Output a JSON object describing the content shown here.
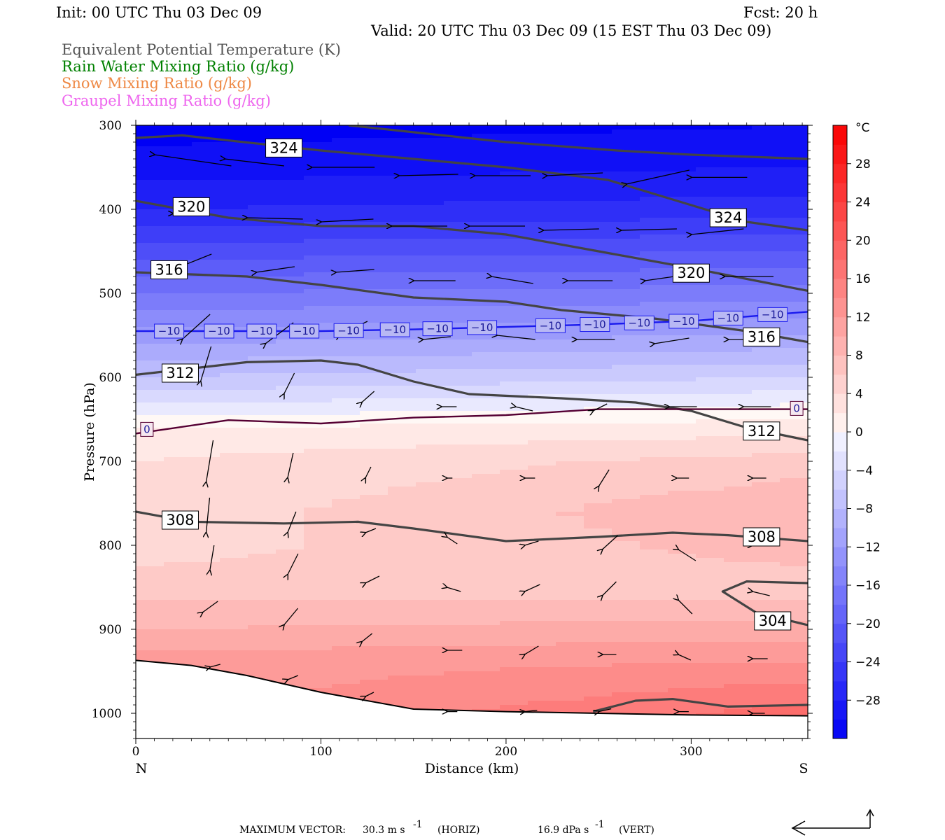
{
  "header": {
    "init": "Init: 00 UTC Thu 03 Dec 09",
    "fcst": "Fcst:   20 h",
    "valid": "Valid: 20 UTC Thu 03 Dec 09 (15 EST Thu 03 Dec 09)"
  },
  "legend": [
    {
      "text": "Equivalent Potential Temperature (K)",
      "color": "#555555"
    },
    {
      "text": "Rain Water Mixing Ratio (g/kg)",
      "color": "#008000"
    },
    {
      "text": "Snow Mixing Ratio (g/kg)",
      "color": "#ee8844"
    },
    {
      "text": "Graupel Mixing Ratio (g/kg)",
      "color": "#ee66ee"
    }
  ],
  "chart_data": {
    "type": "cross-section",
    "xlabel": "Distance (km)",
    "ylabel": "Pressure (hPa)",
    "x_range": [
      0,
      363
    ],
    "y_range_hPa": [
      300,
      1030
    ],
    "x_ticks": [
      0,
      100,
      200,
      300
    ],
    "y_ticks": [
      300,
      400,
      500,
      600,
      700,
      800,
      900,
      1000
    ],
    "left_end_label": "N",
    "right_end_label": "S",
    "colorbar": {
      "unit": "°C",
      "range": [
        -32,
        32
      ],
      "ticks": [
        28,
        24,
        20,
        16,
        12,
        8,
        4,
        0,
        -4,
        -8,
        -12,
        -16,
        -20,
        -24,
        -28
      ],
      "tick_labels": [
        "28",
        "24",
        "20",
        "16",
        "12",
        "8",
        "4",
        "0",
        "−4",
        "−8",
        "−12",
        "−16",
        "−20",
        "−24",
        "−28"
      ]
    },
    "temperature_field": {
      "description_free": true,
      "profile_left": [
        [
          300,
          -32
        ],
        [
          350,
          -30
        ],
        [
          400,
          -27
        ],
        [
          450,
          -22
        ],
        [
          500,
          -17
        ],
        [
          550,
          -12
        ],
        [
          600,
          -7
        ],
        [
          640,
          -2
        ],
        [
          660,
          1
        ],
        [
          700,
          3
        ],
        [
          800,
          4
        ],
        [
          850,
          6
        ],
        [
          900,
          9
        ],
        [
          940,
          12
        ]
      ],
      "profile_right": [
        [
          300,
          -31
        ],
        [
          350,
          -29
        ],
        [
          400,
          -26
        ],
        [
          450,
          -21
        ],
        [
          500,
          -16
        ],
        [
          550,
          -11
        ],
        [
          600,
          -5
        ],
        [
          640,
          0
        ],
        [
          660,
          2
        ],
        [
          700,
          6
        ],
        [
          760,
          9
        ],
        [
          800,
          8
        ],
        [
          850,
          6
        ],
        [
          900,
          10
        ],
        [
          950,
          14
        ],
        [
          1000,
          18
        ]
      ]
    },
    "theta_e_contours": [
      {
        "value": 324,
        "label": "324",
        "points": [
          [
            0,
            315
          ],
          [
            25,
            312
          ],
          [
            100,
            330
          ],
          [
            200,
            350
          ],
          [
            255,
            365
          ],
          [
            300,
            395
          ],
          [
            330,
            415
          ],
          [
            363,
            425
          ]
        ]
      },
      {
        "value": 324,
        "label": "324",
        "points": [
          [
            115,
            300
          ],
          [
            200,
            320
          ],
          [
            260,
            330
          ],
          [
            300,
            335
          ],
          [
            363,
            340
          ]
        ]
      },
      {
        "value": 320,
        "label": "320",
        "points": [
          [
            0,
            390
          ],
          [
            50,
            410
          ],
          [
            100,
            420
          ],
          [
            150,
            420
          ],
          [
            200,
            430
          ],
          [
            250,
            450
          ],
          [
            300,
            470
          ],
          [
            363,
            497
          ]
        ]
      },
      {
        "value": 316,
        "label": "316",
        "points": [
          [
            0,
            475
          ],
          [
            60,
            480
          ],
          [
            100,
            490
          ],
          [
            150,
            505
          ],
          [
            200,
            510
          ],
          [
            230,
            520
          ],
          [
            280,
            530
          ],
          [
            330,
            545
          ],
          [
            363,
            558
          ]
        ]
      },
      {
        "value": 312,
        "label": "312",
        "points": [
          [
            0,
            597
          ],
          [
            60,
            582
          ],
          [
            100,
            580
          ],
          [
            120,
            585
          ],
          [
            150,
            605
          ],
          [
            180,
            620
          ],
          [
            230,
            625
          ],
          [
            270,
            630
          ],
          [
            300,
            640
          ],
          [
            330,
            660
          ],
          [
            363,
            675
          ]
        ]
      },
      {
        "value": 308,
        "label": "308",
        "points": [
          [
            0,
            760
          ],
          [
            30,
            772
          ],
          [
            80,
            774
          ],
          [
            120,
            772
          ],
          [
            150,
            780
          ],
          [
            200,
            795
          ],
          [
            250,
            790
          ],
          [
            290,
            785
          ],
          [
            320,
            788
          ],
          [
            363,
            795
          ]
        ]
      },
      {
        "value": 304,
        "label": "304",
        "points": [
          [
            363,
            845
          ],
          [
            330,
            843
          ],
          [
            317,
            855
          ],
          [
            335,
            880
          ],
          [
            363,
            895
          ]
        ]
      },
      {
        "value": 304,
        "label": "",
        "points": [
          [
            247,
            998
          ],
          [
            270,
            985
          ],
          [
            290,
            983
          ],
          [
            320,
            992
          ],
          [
            363,
            990
          ]
        ]
      }
    ],
    "isotherms": [
      {
        "value": -10,
        "label": "−10",
        "color": "#1a1aee",
        "points": [
          [
            0,
            545
          ],
          [
            100,
            545
          ],
          [
            150,
            543
          ],
          [
            200,
            540
          ],
          [
            250,
            537
          ],
          [
            300,
            533
          ],
          [
            363,
            522
          ]
        ]
      },
      {
        "value": 0,
        "label": "0",
        "color": "#550033",
        "points": [
          [
            0,
            667
          ],
          [
            50,
            651
          ],
          [
            100,
            655
          ],
          [
            150,
            648
          ],
          [
            200,
            645
          ],
          [
            250,
            638
          ],
          [
            300,
            638
          ],
          [
            363,
            638
          ]
        ]
      }
    ],
    "surface_line": [
      [
        0,
        937
      ],
      [
        30,
        943
      ],
      [
        60,
        955
      ],
      [
        100,
        975
      ],
      [
        150,
        995
      ],
      [
        200,
        998
      ],
      [
        250,
        1000
      ],
      [
        300,
        1002
      ],
      [
        363,
        1003
      ]
    ],
    "footer": {
      "label": "MAXIMUM VECTOR:",
      "horiz": "30.3 m s",
      "horiz_unit": "(HORIZ)",
      "vert": "16.9 dPa s",
      "vert_unit": "(VERT)",
      "exp": "-1"
    }
  }
}
